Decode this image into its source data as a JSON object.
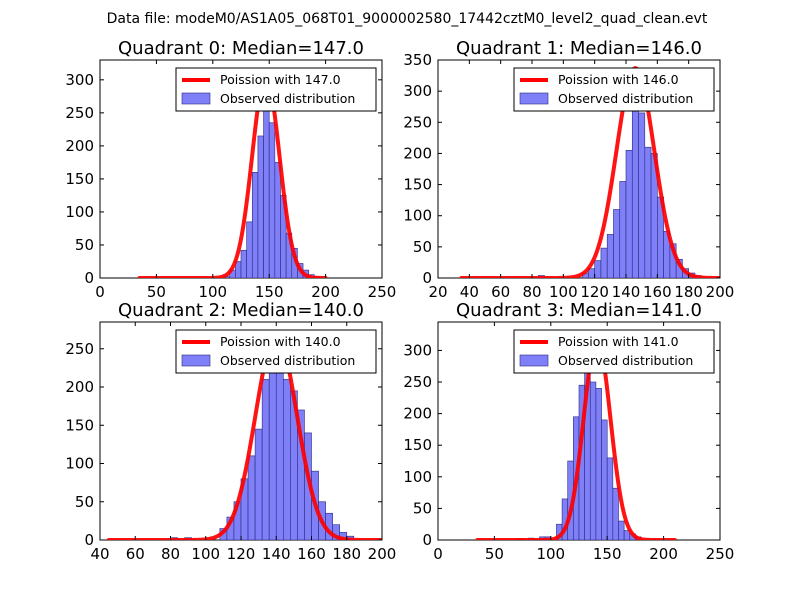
{
  "suptitle": "Data file: modeM0/AS1A05_068T01_9000002580_17442cztM0_level2_quad_clean.evt",
  "colors": {
    "curve": "#ff0000",
    "bars": "#7f7ff7",
    "bar_edge": "#2a2a80"
  },
  "chart_data": [
    {
      "type": "bar",
      "title": "Quadrant 0: Median=147.0",
      "xlim": [
        0,
        250
      ],
      "ylim": [
        0,
        330
      ],
      "xticks": [
        0,
        50,
        100,
        150,
        200,
        250
      ],
      "yticks": [
        0,
        50,
        100,
        150,
        200,
        250,
        300
      ],
      "bin_width": 5,
      "bins": [
        [
          110,
          2
        ],
        [
          115,
          12
        ],
        [
          120,
          25
        ],
        [
          125,
          42
        ],
        [
          130,
          85
        ],
        [
          135,
          160
        ],
        [
          140,
          215
        ],
        [
          145,
          258
        ],
        [
          150,
          235
        ],
        [
          155,
          175
        ],
        [
          160,
          125
        ],
        [
          165,
          68
        ],
        [
          170,
          45
        ],
        [
          175,
          22
        ],
        [
          180,
          12
        ],
        [
          185,
          5
        ],
        [
          190,
          2
        ]
      ],
      "poisson_mean": 147.0,
      "poisson_scale": 305,
      "curve_xrange": [
        35,
        200
      ],
      "legend": {
        "line": "Poission with 147.0",
        "bars": "Observed distribution"
      }
    },
    {
      "type": "bar",
      "title": "Quadrant 1: Median=146.0",
      "xlim": [
        20,
        200
      ],
      "ylim": [
        0,
        350
      ],
      "xticks": [
        20,
        40,
        60,
        80,
        100,
        120,
        140,
        160,
        180,
        200
      ],
      "yticks": [
        0,
        50,
        100,
        150,
        200,
        250,
        300,
        350
      ],
      "bin_width": 4,
      "bins": [
        [
          84,
          4
        ],
        [
          112,
          8
        ],
        [
          116,
          15
        ],
        [
          120,
          28
        ],
        [
          124,
          48
        ],
        [
          128,
          70
        ],
        [
          132,
          110
        ],
        [
          136,
          155
        ],
        [
          140,
          205
        ],
        [
          144,
          300
        ],
        [
          148,
          265
        ],
        [
          152,
          210
        ],
        [
          156,
          200
        ],
        [
          160,
          130
        ],
        [
          164,
          75
        ],
        [
          168,
          55
        ],
        [
          172,
          30
        ],
        [
          176,
          15
        ],
        [
          180,
          8
        ],
        [
          184,
          4
        ]
      ],
      "poisson_mean": 146.0,
      "poisson_scale": 337,
      "curve_xrange": [
        35,
        200
      ],
      "legend": {
        "line": "Poission with 146.0",
        "bars": "Observed distribution"
      }
    },
    {
      "type": "bar",
      "title": "Quadrant 2: Median=140.0",
      "xlim": [
        40,
        200
      ],
      "ylim": [
        0,
        285
      ],
      "xticks": [
        40,
        60,
        80,
        100,
        120,
        140,
        160,
        180,
        200
      ],
      "yticks": [
        0,
        50,
        100,
        150,
        200,
        250
      ],
      "bin_width": 4,
      "bins": [
        [
          80,
          3
        ],
        [
          88,
          3
        ],
        [
          108,
          15
        ],
        [
          112,
          30
        ],
        [
          116,
          50
        ],
        [
          120,
          80
        ],
        [
          124,
          110
        ],
        [
          128,
          145
        ],
        [
          132,
          210
        ],
        [
          136,
          250
        ],
        [
          140,
          230
        ],
        [
          144,
          210
        ],
        [
          148,
          195
        ],
        [
          152,
          170
        ],
        [
          156,
          140
        ],
        [
          160,
          90
        ],
        [
          164,
          50
        ],
        [
          168,
          35
        ],
        [
          172,
          20
        ],
        [
          176,
          10
        ],
        [
          180,
          5
        ]
      ],
      "poisson_mean": 140.0,
      "poisson_scale": 268,
      "curve_xrange": [
        45,
        200
      ],
      "legend": {
        "line": "Poission with 140.0",
        "bars": "Observed distribution"
      }
    },
    {
      "type": "bar",
      "title": "Quadrant 3: Median=141.0",
      "xlim": [
        0,
        250
      ],
      "ylim": [
        0,
        345
      ],
      "xticks": [
        0,
        50,
        100,
        150,
        200,
        250
      ],
      "yticks": [
        0,
        50,
        100,
        150,
        200,
        250,
        300
      ],
      "bin_width": 5,
      "bins": [
        [
          70,
          2
        ],
        [
          80,
          3
        ],
        [
          90,
          5
        ],
        [
          95,
          5
        ],
        [
          105,
          25
        ],
        [
          110,
          65
        ],
        [
          115,
          125
        ],
        [
          120,
          195
        ],
        [
          125,
          245
        ],
        [
          130,
          275
        ],
        [
          135,
          250
        ],
        [
          140,
          240
        ],
        [
          145,
          190
        ],
        [
          150,
          130
        ],
        [
          155,
          82
        ],
        [
          160,
          30
        ],
        [
          165,
          15
        ],
        [
          170,
          10
        ],
        [
          175,
          5
        ]
      ],
      "poisson_mean": 141.0,
      "poisson_scale": 318,
      "curve_xrange": [
        35,
        210
      ],
      "legend": {
        "line": "Poission with 141.0",
        "bars": "Observed distribution"
      }
    }
  ]
}
